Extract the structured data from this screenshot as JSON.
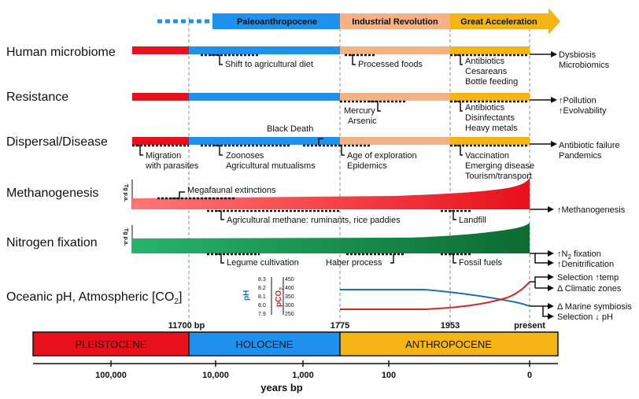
{
  "eras": {
    "paleo": "Paleoanthropocene",
    "industrial": "Industrial Revolution",
    "great": "Great Acceleration"
  },
  "rows": {
    "microbiome": "Human microbiome",
    "resistance": "Resistance",
    "dispersal": "Dispersal/Disease",
    "methanogenesis": "Methanogenesis",
    "nitrogen": "Nitrogen fixation",
    "oceanic_a": "Oceanic pH, Atmospheric [CO",
    "oceanic_sub": "2",
    "oceanic_b": "]"
  },
  "ann": {
    "shift_diet": "Shift to agricultural diet",
    "processed_foods": "Processed foods",
    "antibiotics": "Antibiotics",
    "cesareans": "Cesareans",
    "bottle_feeding": "Bottle feeding",
    "dysbiosis": "Dysbiosis",
    "microbiomics": "Microbiomics",
    "mercury": "Mercury",
    "arsenic": "Arsenic",
    "disinfectants": "Disinfectants",
    "heavy_metals": "Heavy metals",
    "pollution": "Pollution",
    "evolvability": "Evolvability",
    "black_death": "Black Death",
    "migration": "Migration",
    "with_parasites": "with parasites",
    "zoonoses": "Zoonoses",
    "ag_mutualisms": "Agricultural mutualisms",
    "age_exploration": "Age of exploration",
    "epidemics": "Epidemics",
    "vaccination": "Vaccination",
    "emerging_disease": "Emerging disease",
    "tourism": "Tourism/transport",
    "antibiotic_failure": "Antibiotic failure",
    "pandemics": "Pandemics",
    "megafaunal": "Megafaunal extinctions",
    "ag_methane": "Agricultural methane: ruminants, rice paddies",
    "landfill": "Landfill",
    "methanogenesis_out": "Methanogenesis",
    "legume": "Legume cultivation",
    "haber": "Haber process",
    "fossil": "Fossil fuels",
    "n2_fix_a": "N",
    "n2_fix_sub": "2",
    "n2_fix_b": " fixation",
    "denitrification": "Denitrification",
    "sel_temp": "Selection ",
    "temp": "temp",
    "climatic": "Δ  Climatic zones",
    "marine": "Δ  Marine symbiosis",
    "sel_ph": "Selection ↓ pH",
    "tgpa": "Tg p.a."
  },
  "ocean_axes": {
    "ph_title": "pH",
    "pco2_title": "pCO",
    "pco2_sub": "2",
    "ph_ticks": [
      "8.3",
      "8.2",
      "8.1",
      "8.0",
      "7.9"
    ],
    "pco2_ticks": [
      "450",
      "400",
      "350",
      "300",
      "250"
    ]
  },
  "markers": [
    "11700 bp",
    "1775",
    "1953",
    "present"
  ],
  "epochs": {
    "pleistocene": "PLEISTOCENE",
    "holocene": "HOLOCENE",
    "anthropocene": "ANTHROPOCENE"
  },
  "time_axis": {
    "ticks": [
      "100,000",
      "10,000",
      "1,000",
      "100",
      "0"
    ],
    "label": "years bp"
  },
  "colors": {
    "red": "#e8101a",
    "blue": "#1e90ee",
    "peach": "#f4b183",
    "gold": "#f5b515",
    "green": "#13a85c",
    "ph_line": "#1f6fb8",
    "co2_line": "#d92020"
  }
}
